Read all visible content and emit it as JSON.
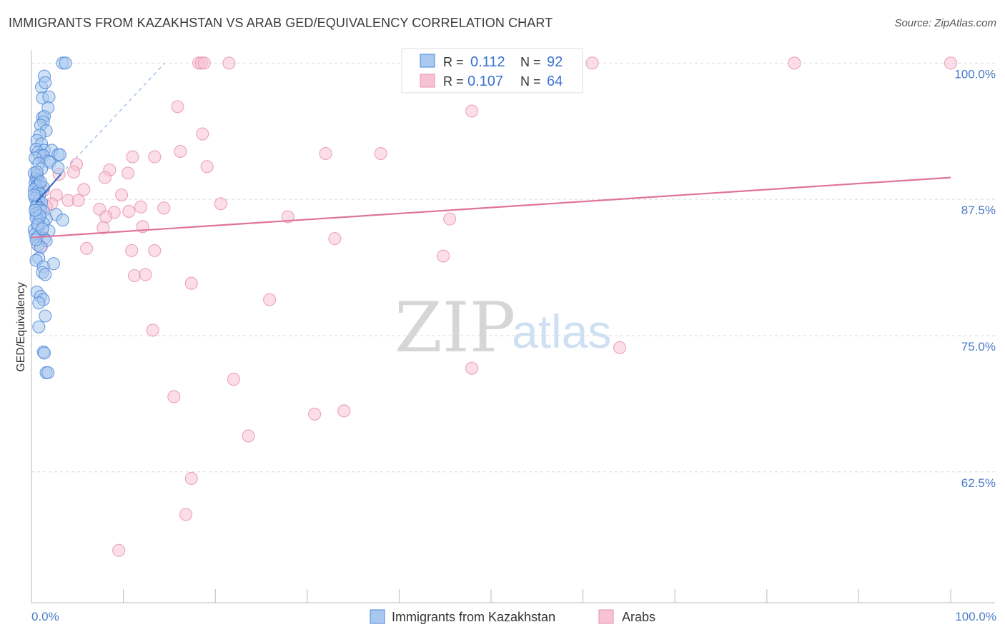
{
  "title": "IMMIGRANTS FROM KAZAKHSTAN VS ARAB GED/EQUIVALENCY CORRELATION CHART",
  "source": "Source: ZipAtlas.com",
  "watermark": {
    "zip": "ZIP",
    "atlas": "atlas"
  },
  "colors": {
    "blue_fill": "#a9c8ef",
    "blue_stroke": "#4a86d8",
    "blue_line": "#3a6fc9",
    "pink_fill": "#f7c3d3",
    "pink_stroke": "#e690ad",
    "pink_line": "#e0739a",
    "grid": "#d9d9d9",
    "axis": "#bbbbbb",
    "tick_text": "#4a7bc8"
  },
  "stats": {
    "r_label": "R =",
    "n_label": "N =",
    "series": [
      {
        "r": "0.112",
        "n": "92"
      },
      {
        "r": "0.107",
        "n": "64"
      }
    ]
  },
  "legend": [
    "Immigrants from Kazakhstan",
    "Arabs"
  ],
  "chart_data": {
    "type": "scatter",
    "ylabel": "GED/Equivalency",
    "xlabel": "",
    "xlim": [
      0,
      100
    ],
    "ylim": [
      50.5,
      101.2
    ],
    "x_tick_labels": [
      "0.0%",
      "100.0%"
    ],
    "y_ticks": [
      100,
      87.5,
      75,
      62.5
    ],
    "y_tick_labels": [
      "100.0%",
      "87.5%",
      "75.0%",
      "62.5%"
    ],
    "series": [
      {
        "name": "Immigrants from Kazakhstan",
        "trend": {
          "x0": 0.5,
          "y0": 87.2,
          "x1": 3.2,
          "y1": 89.8,
          "dash_x1": 14.5,
          "dash_y1": 100.0
        },
        "points": [
          [
            3.4,
            100
          ],
          [
            3.7,
            100
          ],
          [
            1.4,
            98.8
          ],
          [
            1.1,
            97.8
          ],
          [
            1.5,
            98.2
          ],
          [
            1.2,
            96.8
          ],
          [
            1.9,
            96.9
          ],
          [
            1.8,
            95.9
          ],
          [
            1.2,
            95.0
          ],
          [
            1.4,
            95.1
          ],
          [
            1.3,
            94.6
          ],
          [
            1.0,
            94.3
          ],
          [
            1.6,
            93.8
          ],
          [
            0.9,
            93.4
          ],
          [
            0.6,
            92.9
          ],
          [
            1.1,
            92.6
          ],
          [
            0.5,
            92.1
          ],
          [
            1.4,
            92.0
          ],
          [
            2.2,
            92.0
          ],
          [
            2.9,
            91.6
          ],
          [
            3.1,
            91.6
          ],
          [
            0.7,
            91.8
          ],
          [
            0.9,
            91.5
          ],
          [
            1.3,
            91.5
          ],
          [
            0.4,
            91.3
          ],
          [
            1.8,
            91.0
          ],
          [
            2.0,
            90.9
          ],
          [
            0.8,
            90.8
          ],
          [
            2.9,
            90.4
          ],
          [
            1.1,
            90.3
          ],
          [
            0.3,
            89.9
          ],
          [
            0.6,
            89.7
          ],
          [
            0.5,
            89.4
          ],
          [
            0.7,
            89.2
          ],
          [
            0.4,
            89.0
          ],
          [
            0.9,
            88.9
          ],
          [
            0.6,
            88.8
          ],
          [
            0.8,
            88.7
          ],
          [
            1.3,
            88.6
          ],
          [
            0.5,
            88.6
          ],
          [
            0.3,
            88.4
          ],
          [
            0.7,
            88.2
          ],
          [
            0.9,
            88.0
          ],
          [
            0.6,
            87.8
          ],
          [
            0.4,
            87.6
          ],
          [
            0.8,
            87.4
          ],
          [
            1.1,
            87.2
          ],
          [
            0.6,
            87.0
          ],
          [
            0.5,
            86.8
          ],
          [
            0.9,
            86.7
          ],
          [
            1.0,
            86.5
          ],
          [
            0.5,
            86.2
          ],
          [
            1.3,
            86.4
          ],
          [
            2.7,
            86.1
          ],
          [
            3.4,
            85.6
          ],
          [
            1.6,
            85.7
          ],
          [
            0.8,
            85.5
          ],
          [
            1.3,
            85.3
          ],
          [
            0.7,
            85.0
          ],
          [
            0.3,
            84.7
          ],
          [
            1.9,
            84.6
          ],
          [
            0.4,
            84.3
          ],
          [
            0.6,
            84.0
          ],
          [
            1.4,
            83.9
          ],
          [
            1.6,
            83.7
          ],
          [
            0.7,
            83.3
          ],
          [
            1.0,
            83.1
          ],
          [
            0.8,
            82.1
          ],
          [
            0.5,
            81.9
          ],
          [
            2.4,
            81.6
          ],
          [
            1.3,
            81.3
          ],
          [
            1.2,
            80.8
          ],
          [
            1.5,
            80.6
          ],
          [
            0.6,
            79.0
          ],
          [
            1.0,
            78.6
          ],
          [
            1.3,
            78.3
          ],
          [
            0.8,
            78.0
          ],
          [
            1.5,
            76.8
          ],
          [
            0.8,
            75.8
          ],
          [
            1.3,
            73.5
          ],
          [
            1.4,
            73.4
          ],
          [
            1.6,
            71.6
          ],
          [
            1.8,
            71.6
          ],
          [
            0.5,
            85.8
          ],
          [
            0.9,
            86.0
          ],
          [
            0.3,
            87.9
          ],
          [
            0.6,
            90.0
          ],
          [
            1.0,
            89.1
          ],
          [
            0.4,
            86.5
          ],
          [
            0.7,
            85.2
          ],
          [
            1.2,
            84.8
          ],
          [
            0.5,
            83.8
          ]
        ]
      },
      {
        "name": "Arabs",
        "trend": {
          "x0": 0,
          "y0": 84.0,
          "x1": 100,
          "y1": 89.5
        },
        "points": [
          [
            18.2,
            100
          ],
          [
            18.5,
            100
          ],
          [
            18.8,
            100
          ],
          [
            21.5,
            100
          ],
          [
            61.0,
            100
          ],
          [
            83.0,
            100
          ],
          [
            100,
            100
          ],
          [
            15.9,
            96.0
          ],
          [
            47.9,
            95.6
          ],
          [
            18.6,
            93.5
          ],
          [
            16.2,
            91.9
          ],
          [
            11.0,
            91.4
          ],
          [
            13.4,
            91.4
          ],
          [
            32.0,
            91.7
          ],
          [
            38.0,
            91.7
          ],
          [
            19.1,
            90.5
          ],
          [
            4.9,
            90.7
          ],
          [
            4.6,
            90.0
          ],
          [
            8.5,
            90.2
          ],
          [
            10.5,
            89.9
          ],
          [
            3.0,
            89.8
          ],
          [
            8.0,
            89.5
          ],
          [
            5.7,
            88.4
          ],
          [
            2.7,
            87.9
          ],
          [
            9.8,
            87.9
          ],
          [
            4.0,
            87.4
          ],
          [
            5.1,
            87.4
          ],
          [
            20.6,
            87.1
          ],
          [
            11.9,
            86.8
          ],
          [
            14.4,
            86.7
          ],
          [
            7.4,
            86.6
          ],
          [
            9.0,
            86.3
          ],
          [
            10.6,
            86.4
          ],
          [
            8.1,
            85.9
          ],
          [
            27.9,
            85.9
          ],
          [
            45.5,
            85.7
          ],
          [
            12.1,
            85.0
          ],
          [
            7.8,
            84.9
          ],
          [
            33.0,
            83.9
          ],
          [
            6.0,
            83.0
          ],
          [
            10.9,
            82.8
          ],
          [
            13.4,
            82.8
          ],
          [
            44.8,
            82.3
          ],
          [
            11.2,
            80.5
          ],
          [
            12.4,
            80.6
          ],
          [
            17.4,
            79.8
          ],
          [
            25.9,
            78.3
          ],
          [
            13.2,
            75.5
          ],
          [
            64.0,
            73.9
          ],
          [
            47.9,
            72.0
          ],
          [
            22.0,
            71.0
          ],
          [
            15.5,
            69.4
          ],
          [
            30.8,
            67.8
          ],
          [
            34.0,
            68.1
          ],
          [
            23.6,
            65.8
          ],
          [
            17.4,
            61.9
          ],
          [
            16.8,
            58.6
          ],
          [
            9.5,
            55.3
          ],
          [
            1.3,
            88.3
          ],
          [
            2.2,
            87.1
          ],
          [
            0.8,
            86.4
          ],
          [
            1.6,
            86.9
          ],
          [
            0.9,
            84.5
          ],
          [
            1.1,
            83.2
          ]
        ]
      }
    ]
  }
}
